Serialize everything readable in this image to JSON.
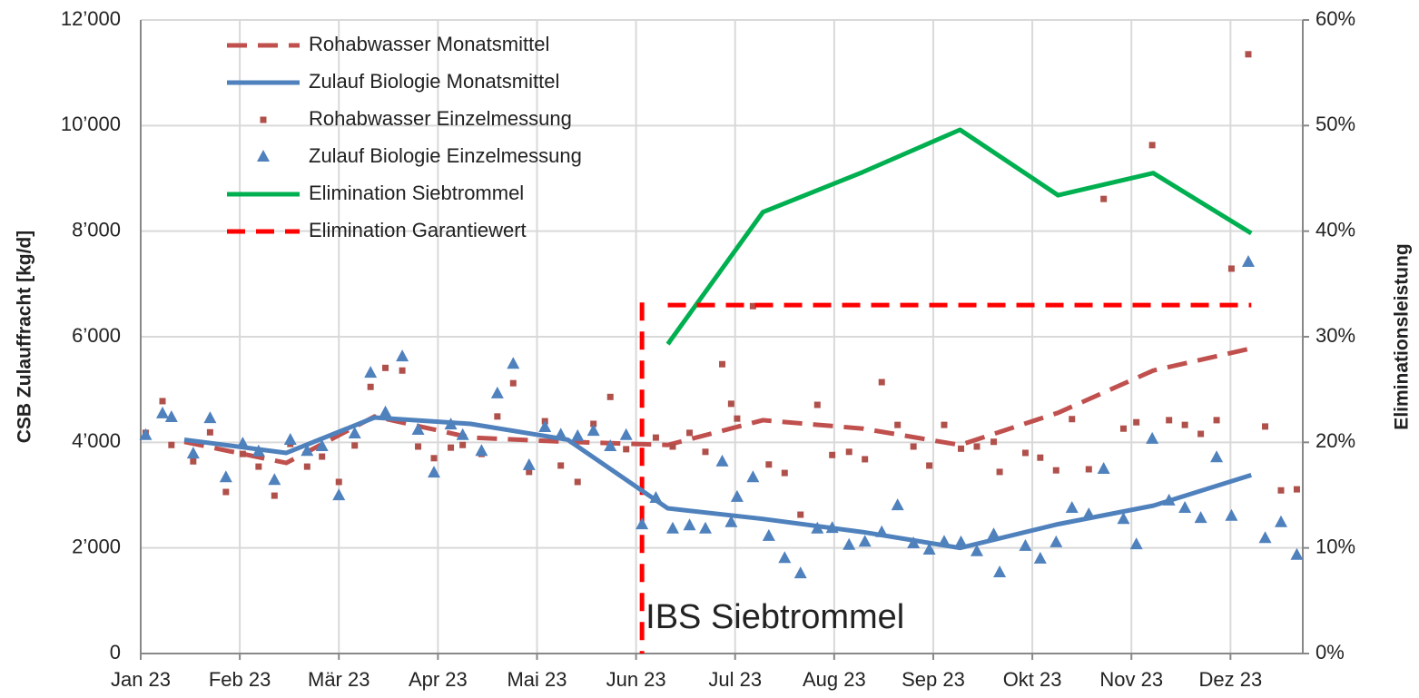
{
  "chart_data": {
    "type": "line",
    "y_label": "CSB Zulauffracht [kg/d]",
    "y2_label": "Eliminationsleistung",
    "xlim": [
      0,
      11.73
    ],
    "xticks": [
      {
        "value": 0,
        "label": "Jan 23"
      },
      {
        "value": 1,
        "label": "Feb 23"
      },
      {
        "value": 2,
        "label": "Mär 23"
      },
      {
        "value": 3,
        "label": "Apr 23"
      },
      {
        "value": 4,
        "label": "Mai 23"
      },
      {
        "value": 5,
        "label": "Jun 23"
      },
      {
        "value": 6,
        "label": "Jul 23"
      },
      {
        "value": 7,
        "label": "Aug 23"
      },
      {
        "value": 8,
        "label": "Sep 23"
      },
      {
        "value": 9,
        "label": "Okt 23"
      },
      {
        "value": 10,
        "label": "Nov 23"
      },
      {
        "value": 11,
        "label": "Dez 23"
      }
    ],
    "ylim": [
      0,
      12000
    ],
    "yticks": [
      0,
      {
        "value": 2000,
        "label": "2’000"
      },
      {
        "value": 4000,
        "label": "4’000"
      },
      {
        "value": 6000,
        "label": "6’000"
      },
      {
        "value": 8000,
        "label": "8’000"
      },
      {
        "value": 10000,
        "label": "10’000"
      },
      {
        "value": 12000,
        "label": "12’000"
      }
    ],
    "y2lim": [
      0,
      60
    ],
    "y2ticks": [
      {
        "value": 0,
        "label": "0%"
      },
      {
        "value": 10,
        "label": "10%"
      },
      {
        "value": 20,
        "label": "20%"
      },
      {
        "value": 30,
        "label": "30%"
      },
      {
        "value": 40,
        "label": "40%"
      },
      {
        "value": 50,
        "label": "50%"
      },
      {
        "value": 60,
        "label": "60%"
      }
    ],
    "grid": true,
    "legend": "upper left",
    "series": [
      {
        "name": "Rohabwasser Monatsmittel",
        "color": "#c0504d",
        "style": "dashed",
        "x": [
          0.44,
          1.47,
          2.36,
          3.33,
          4.31,
          5.32,
          6.28,
          7.29,
          8.27,
          9.26,
          10.22,
          11.21
        ],
        "values": [
          4010,
          3610,
          4490,
          4090,
          4010,
          3950,
          4420,
          4260,
          3950,
          4560,
          5360,
          5780
        ]
      },
      {
        "name": "Zulauf Biologie Monatsmittel",
        "color": "#4f81bd",
        "style": "solid",
        "x": [
          0.44,
          1.47,
          2.36,
          3.33,
          4.31,
          5.32,
          6.28,
          7.29,
          8.27,
          9.26,
          10.22,
          11.21
        ],
        "values": [
          4050,
          3800,
          4470,
          4350,
          4050,
          2750,
          2550,
          2300,
          2000,
          2450,
          2800,
          3380
        ]
      },
      {
        "name": "Rohabwasser Einzelmessung",
        "color": "#b0504a",
        "style": "markers",
        "marker": "square",
        "x": [
          0.05,
          0.22,
          0.31,
          0.53,
          0.7,
          0.86,
          1.03,
          1.19,
          1.35,
          1.51,
          1.68,
          1.83,
          2.0,
          2.16,
          2.32,
          2.47,
          2.64,
          2.8,
          2.96,
          3.13,
          3.25,
          3.44,
          3.6,
          3.76,
          3.92,
          4.08,
          4.24,
          4.41,
          4.57,
          4.74,
          4.9,
          5.2,
          5.37,
          5.54,
          5.7,
          5.87,
          5.96,
          6.02,
          6.18,
          6.34,
          6.5,
          6.66,
          6.83,
          6.98,
          7.15,
          7.31,
          7.48,
          7.64,
          7.8,
          7.96,
          8.11,
          8.28,
          8.44,
          8.61,
          8.67,
          8.93,
          9.08,
          9.24,
          9.4,
          9.57,
          9.72,
          9.92,
          10.05,
          10.21,
          10.38,
          10.54,
          10.7,
          10.86,
          11.01,
          11.18,
          11.35,
          11.51,
          11.67
        ],
        "values": [
          4180,
          4780,
          3950,
          3640,
          4190,
          3060,
          3780,
          3540,
          2990,
          3970,
          3540,
          3730,
          3250,
          3940,
          5050,
          5410,
          5360,
          3920,
          3700,
          3900,
          3950,
          3780,
          4490,
          5120,
          3440,
          4400,
          3560,
          3250,
          4350,
          4860,
          3870,
          4090,
          3920,
          4180,
          3820,
          5480,
          4730,
          4450,
          6580,
          3580,
          3420,
          2630,
          4710,
          3760,
          3820,
          3680,
          5140,
          4330,
          3920,
          3560,
          4330,
          3880,
          3920,
          4010,
          3440,
          3800,
          3710,
          3470,
          4440,
          3490,
          8610,
          4260,
          4380,
          9630,
          4420,
          4330,
          4160,
          4420,
          7290,
          11350,
          4300,
          3090,
          3110
        ]
      },
      {
        "name": "Zulauf Biologie Einzelmessung",
        "color": "#4f81bd",
        "style": "markers",
        "marker": "triangle",
        "x": [
          0.05,
          0.22,
          0.31,
          0.53,
          0.7,
          0.86,
          1.03,
          1.19,
          1.35,
          1.51,
          1.68,
          1.83,
          2.0,
          2.16,
          2.32,
          2.47,
          2.64,
          2.8,
          2.96,
          3.13,
          3.25,
          3.44,
          3.6,
          3.76,
          3.92,
          4.08,
          4.24,
          4.41,
          4.57,
          4.74,
          4.9,
          5.06,
          5.2,
          5.37,
          5.54,
          5.7,
          5.87,
          5.96,
          6.02,
          6.18,
          6.34,
          6.5,
          6.66,
          6.83,
          6.98,
          7.15,
          7.31,
          7.48,
          7.64,
          7.8,
          7.96,
          8.11,
          8.28,
          8.44,
          8.61,
          8.67,
          8.93,
          9.08,
          9.24,
          9.4,
          9.57,
          9.72,
          9.92,
          10.05,
          10.21,
          10.38,
          10.54,
          10.7,
          10.86,
          11.01,
          11.18,
          11.35,
          11.51,
          11.67
        ],
        "values": [
          4130,
          4540,
          4470,
          3780,
          4450,
          3330,
          3970,
          3820,
          3280,
          4040,
          3830,
          3920,
          2990,
          4160,
          5310,
          4560,
          5620,
          4230,
          3420,
          4330,
          4130,
          3830,
          4920,
          5480,
          3560,
          4280,
          4140,
          4110,
          4210,
          3920,
          4130,
          2440,
          2940,
          2360,
          2420,
          2360,
          3630,
          2480,
          2960,
          3330,
          2220,
          1800,
          1510,
          2360,
          2370,
          2050,
          2110,
          2290,
          2800,
          2080,
          1960,
          2110,
          2100,
          1930,
          2250,
          1530,
          2030,
          1790,
          2100,
          2750,
          2630,
          3490,
          2540,
          2060,
          4060,
          2890,
          2750,
          2560,
          3710,
          2600,
          7410,
          2180,
          2480,
          1860
        ]
      },
      {
        "name": "Elimination Siebtrommel",
        "color": "#00b050",
        "style": "solid",
        "axis": "y2",
        "x": [
          5.32,
          6.28,
          7.29,
          8.27,
          9.26,
          10.22,
          11.21
        ],
        "values": [
          29.3,
          41.8,
          45.6,
          49.6,
          43.4,
          45.5,
          39.8
        ]
      },
      {
        "name": "Elimination Garantiewert",
        "color": "#ff0000",
        "style": "dashed",
        "axis": "y2",
        "x": [
          5.32,
          6.28,
          7.29,
          8.27,
          9.26,
          10.22,
          11.21
        ],
        "values": [
          33,
          33,
          33,
          33,
          33,
          33,
          33
        ]
      }
    ],
    "annotations": [
      {
        "text": "IBS Siebtrommel",
        "x": 5.06,
        "y_top": 6650,
        "color": "#ff0000"
      }
    ]
  }
}
